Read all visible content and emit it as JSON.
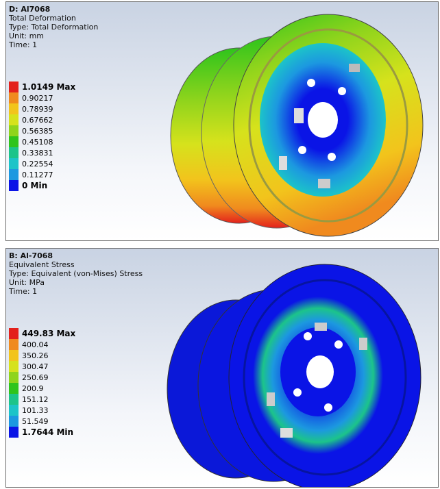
{
  "panels": [
    {
      "title": "D: Al7068",
      "lines": [
        "Total Deformation",
        "Type: Total Deformation",
        "Unit: mm",
        "Time: 1"
      ],
      "legend": [
        {
          "label": "1.0149 Max",
          "color": "#e3211c"
        },
        {
          "label": "0.90217",
          "color": "#f08a1e"
        },
        {
          "label": "0.78939",
          "color": "#f2c41c"
        },
        {
          "label": "0.67662",
          "color": "#d6e21c"
        },
        {
          "label": "0.56385",
          "color": "#8fd41c"
        },
        {
          "label": "0.45108",
          "color": "#2fc41c"
        },
        {
          "label": "0.33831",
          "color": "#1cc48a"
        },
        {
          "label": "0.22554",
          "color": "#1cc4c8"
        },
        {
          "label": "0.11277",
          "color": "#1c98e0"
        },
        {
          "label": "0 Min",
          "color": "#0a14e6"
        }
      ]
    },
    {
      "title": "B: Al-7068",
      "lines": [
        "Equivalent Stress",
        "Type: Equivalent (von-Mises) Stress",
        "Unit: MPa",
        "Time: 1"
      ],
      "legend": [
        {
          "label": "449.83 Max",
          "color": "#e3211c"
        },
        {
          "label": "400.04",
          "color": "#f08a1e"
        },
        {
          "label": "350.26",
          "color": "#f2c41c"
        },
        {
          "label": "300.47",
          "color": "#d6e21c"
        },
        {
          "label": "250.69",
          "color": "#8fd41c"
        },
        {
          "label": "200.9",
          "color": "#2fc41c"
        },
        {
          "label": "151.12",
          "color": "#1cc48a"
        },
        {
          "label": "101.33",
          "color": "#1cc4c8"
        },
        {
          "label": "51.549",
          "color": "#1c98e0"
        },
        {
          "label": "1.7644 Min",
          "color": "#0a14e6"
        }
      ]
    }
  ]
}
